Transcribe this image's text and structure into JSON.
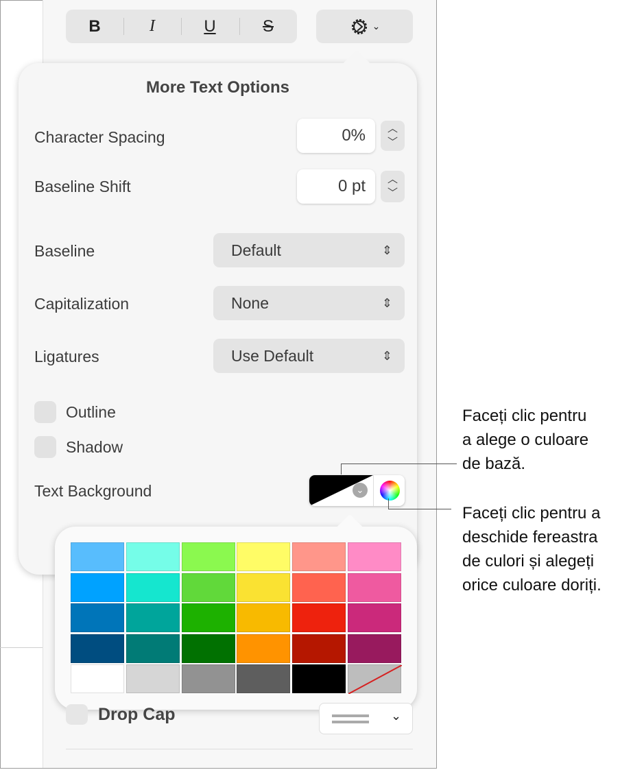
{
  "toolbar": {
    "bold": "B",
    "italic": "I",
    "underline": "U",
    "strikethrough": "S",
    "gear_icon": "gear-icon"
  },
  "popover": {
    "title": "More Text Options",
    "character_spacing": {
      "label": "Character Spacing",
      "value": "0%"
    },
    "baseline_shift": {
      "label": "Baseline Shift",
      "value": "0 pt"
    },
    "baseline": {
      "label": "Baseline",
      "value": "Default"
    },
    "capitalization": {
      "label": "Capitalization",
      "value": "None"
    },
    "ligatures": {
      "label": "Ligatures",
      "value": "Use Default"
    },
    "outline": {
      "label": "Outline",
      "checked": false
    },
    "shadow": {
      "label": "Shadow",
      "checked": false
    },
    "text_background": {
      "label": "Text Background"
    }
  },
  "palette": {
    "colors": [
      "#58bdfd",
      "#75fde8",
      "#8bf94f",
      "#fffc66",
      "#ff968a",
      "#ff8bc6",
      "#00a2ff",
      "#15e6cf",
      "#61d93a",
      "#fae232",
      "#ff634f",
      "#ef5aa0",
      "#0075b9",
      "#00a59b",
      "#1db100",
      "#f8ba00",
      "#ee220d",
      "#cb297b",
      "#004d80",
      "#017b76",
      "#017101",
      "#ff9300",
      "#b51700",
      "#981a5e",
      "#ffffff",
      "#d6d6d6",
      "#929292",
      "#5e5e5e",
      "#000000",
      "none"
    ]
  },
  "drop_cap": {
    "label": "Drop Cap",
    "checked": false
  },
  "callouts": {
    "base_color": [
      "Faceți clic pentru",
      "a alege o culoare",
      "de bază."
    ],
    "color_window": [
      "Faceți clic pentru a",
      "deschide fereastra",
      "de culori și alegeți",
      "orice culoare doriți."
    ]
  }
}
